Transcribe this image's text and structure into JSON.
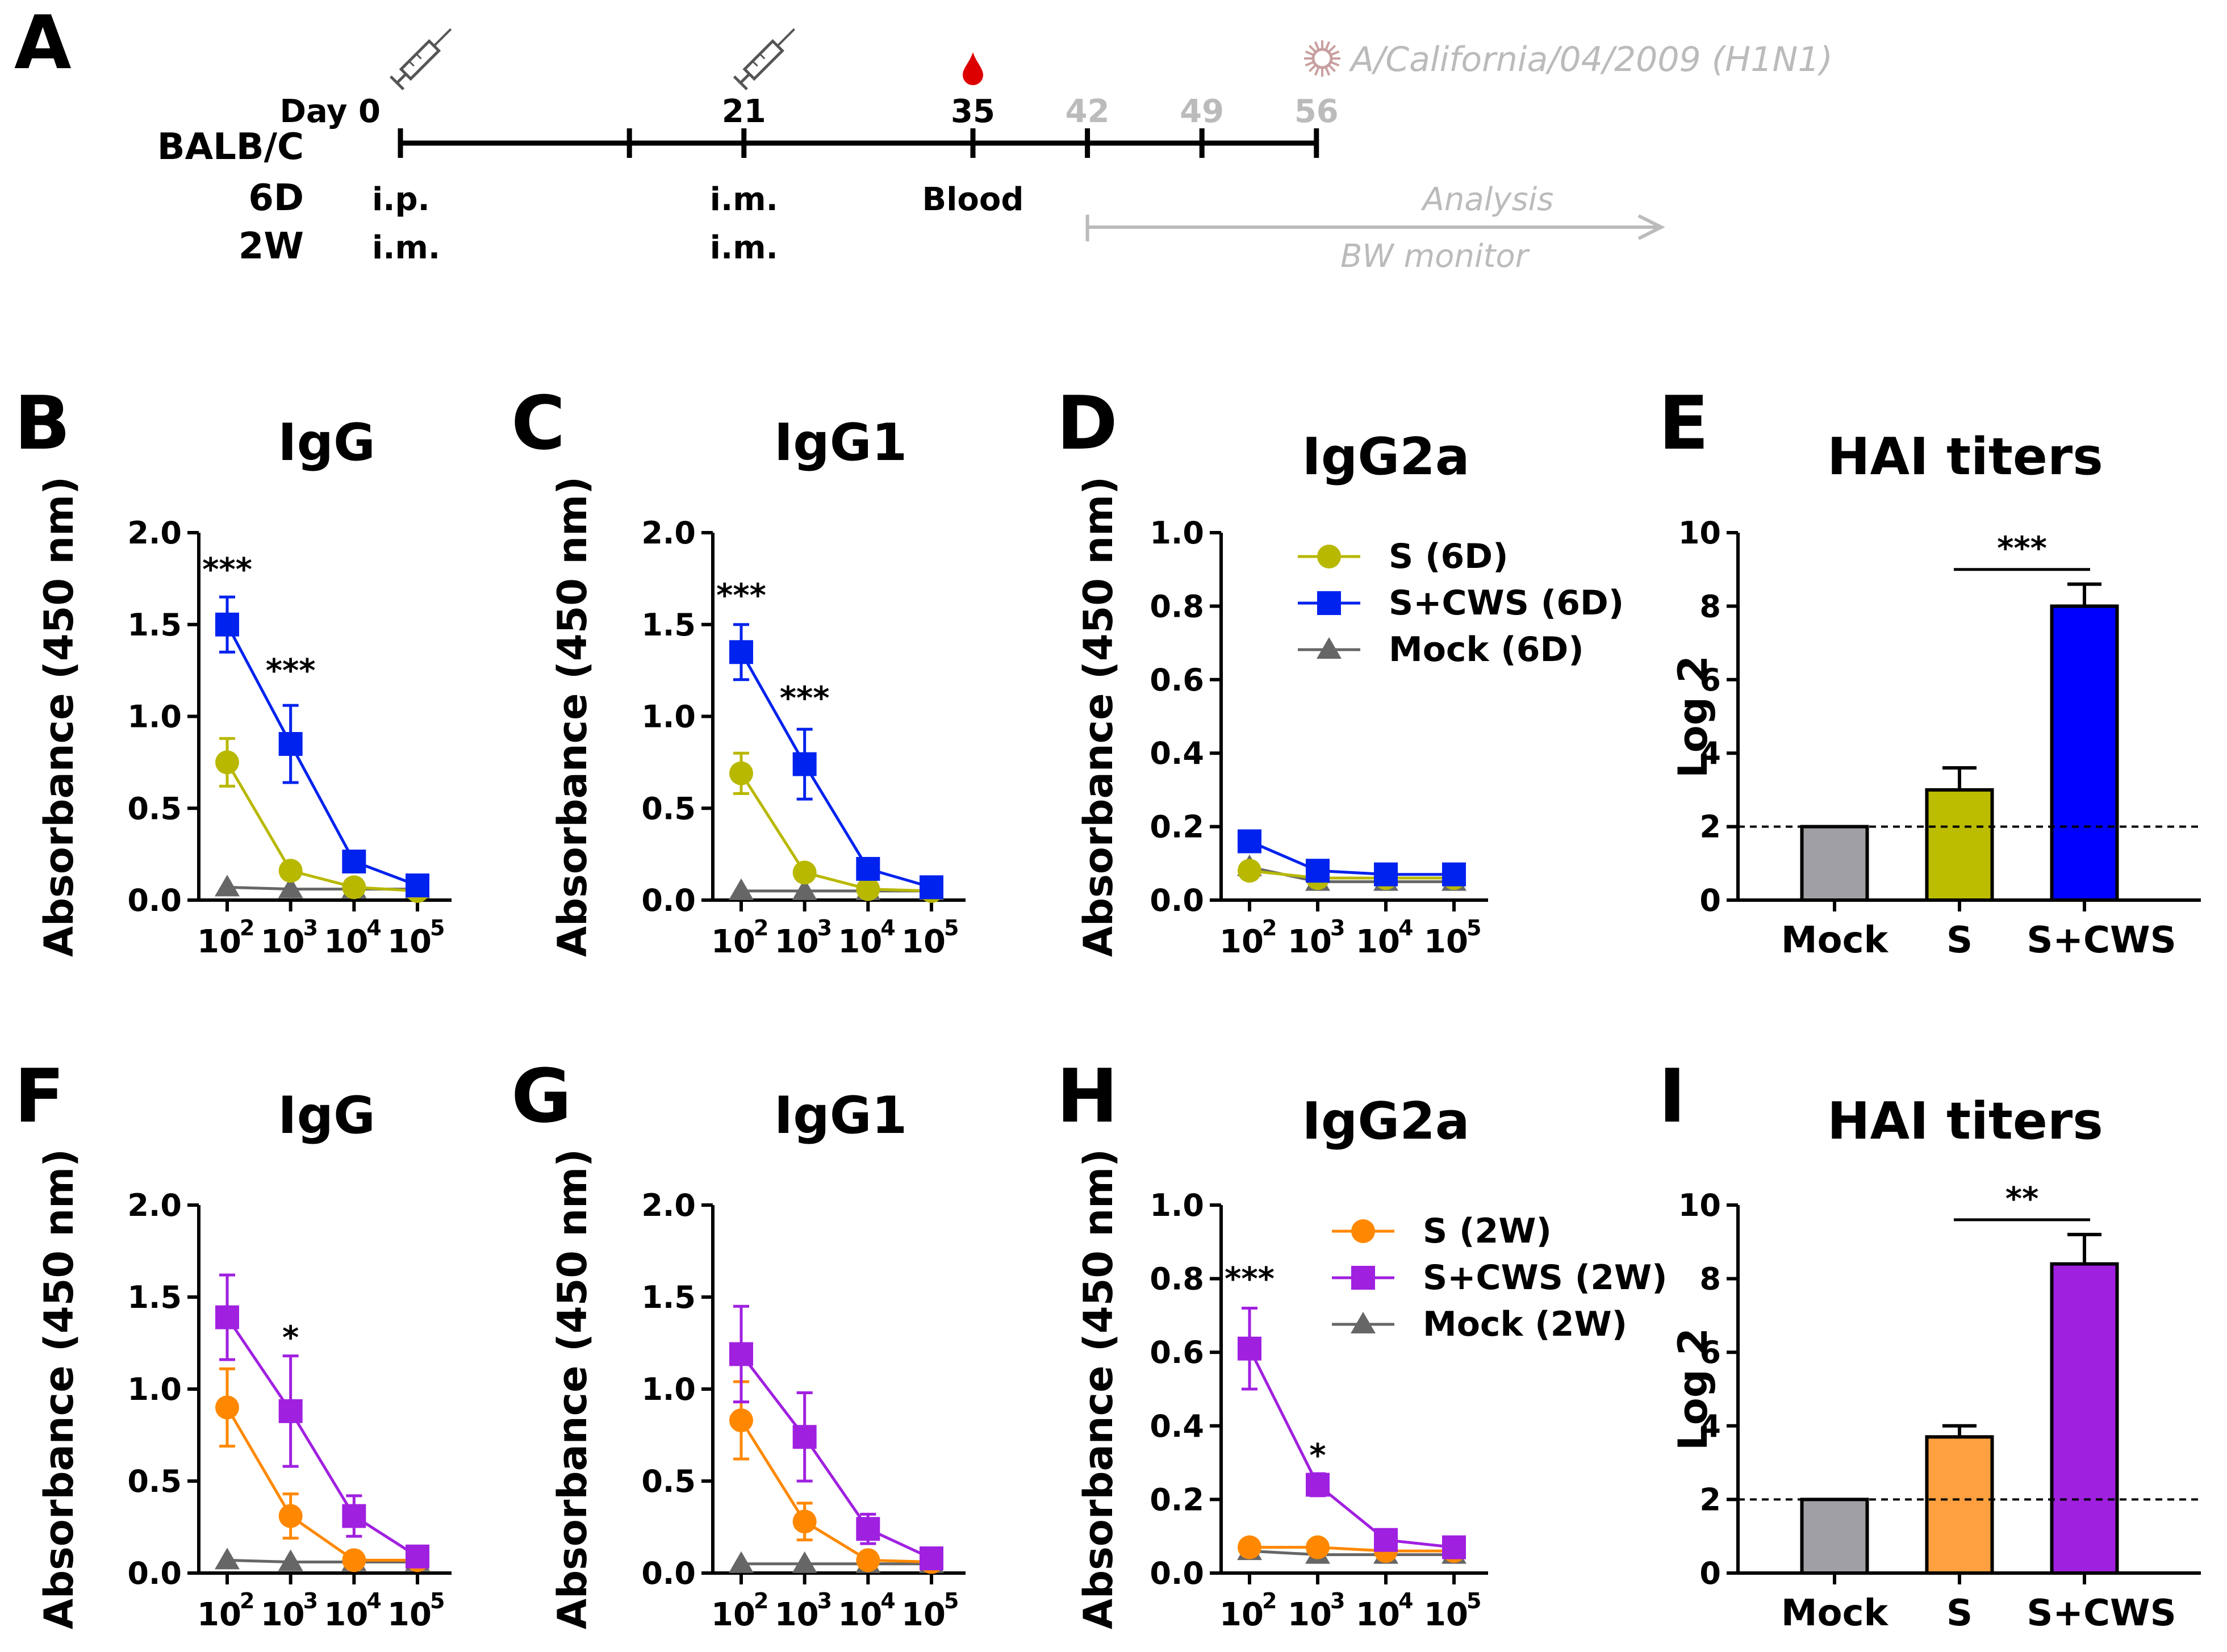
{
  "timeline": {
    "panel": "A",
    "virus_label": "A/California/04/2009 (H1N1)",
    "day_label": "Day 0",
    "day_ticks": [
      {
        "day": 0,
        "label": "",
        "grey": false
      },
      {
        "day": 21,
        "label": "21",
        "grey": false
      },
      {
        "day": 35,
        "label": "35",
        "grey": false
      },
      {
        "day": 42,
        "label": "42",
        "grey": true
      },
      {
        "day": 49,
        "label": "49",
        "grey": true
      },
      {
        "day": 56,
        "label": "56",
        "grey": true
      }
    ],
    "minor_tick_day": 14,
    "row_labels": [
      "BALB/C",
      "6D",
      "2W"
    ],
    "day0_routes": [
      "i.p.",
      "i.m."
    ],
    "day21_routes": [
      "i.m.",
      "i.m."
    ],
    "blood_label": "Blood",
    "analysis_label": "Analysis",
    "bw_label": "BW monitor",
    "colors": {
      "blood": "#dd0000",
      "grey": "#bbbbbb",
      "virus": "#c8a0a0"
    }
  },
  "chart_data": [
    {
      "panel": "B",
      "type": "line",
      "title": "IgG",
      "row": "6D",
      "ylabel": "Absorbance (450 nm)",
      "ylim": [
        0,
        2.0
      ],
      "yticks": [
        "0.0",
        "0.5",
        "1.0",
        "1.5",
        "2.0"
      ],
      "xtick_base": "10",
      "xtick_exp": [
        "2",
        "3",
        "4",
        "5"
      ],
      "series": [
        {
          "name": "S (6D)",
          "color": "#b8b800",
          "marker": "circle",
          "values": [
            0.75,
            0.16,
            0.07,
            0.05
          ],
          "errors": [
            0.13,
            0.03,
            0.02,
            0.01
          ]
        },
        {
          "name": "S+CWS (6D)",
          "color": "#0022ee",
          "marker": "square",
          "values": [
            1.5,
            0.85,
            0.21,
            0.08
          ],
          "errors": [
            0.15,
            0.21,
            0.05,
            0.02
          ]
        },
        {
          "name": "Mock (6D)",
          "color": "#666666",
          "marker": "triangle",
          "values": [
            0.07,
            0.06,
            0.06,
            0.06
          ],
          "errors": [
            0,
            0,
            0,
            0
          ]
        }
      ],
      "annotations": [
        {
          "label": "***",
          "index": 0,
          "y": 1.74
        },
        {
          "label": "***",
          "index": 1,
          "y": 1.19
        }
      ]
    },
    {
      "panel": "C",
      "type": "line",
      "title": "IgG1",
      "row": "6D",
      "ylabel": "Absorbance (450 nm)",
      "ylim": [
        0,
        2.0
      ],
      "yticks": [
        "0.0",
        "0.5",
        "1.0",
        "1.5",
        "2.0"
      ],
      "xtick_base": "10",
      "xtick_exp": [
        "2",
        "3",
        "4",
        "5"
      ],
      "series": [
        {
          "name": "S (6D)",
          "color": "#b8b800",
          "marker": "circle",
          "values": [
            0.69,
            0.15,
            0.06,
            0.05
          ],
          "errors": [
            0.11,
            0.02,
            0.01,
            0.01
          ]
        },
        {
          "name": "S+CWS (6D)",
          "color": "#0022ee",
          "marker": "square",
          "values": [
            1.35,
            0.74,
            0.17,
            0.07
          ],
          "errors": [
            0.15,
            0.19,
            0.03,
            0.01
          ]
        },
        {
          "name": "Mock (6D)",
          "color": "#666666",
          "marker": "triangle",
          "values": [
            0.05,
            0.05,
            0.05,
            0.05
          ],
          "errors": [
            0,
            0,
            0,
            0
          ]
        }
      ],
      "annotations": [
        {
          "label": "***",
          "index": 0,
          "y": 1.6
        },
        {
          "label": "***",
          "index": 1,
          "y": 1.04
        }
      ]
    },
    {
      "panel": "D",
      "type": "line",
      "title": "IgG2a",
      "row": "6D",
      "ylabel": "Absorbance (450 nm)",
      "ylim": [
        0,
        1.0
      ],
      "yticks": [
        "0.0",
        "0.2",
        "0.4",
        "0.6",
        "0.8",
        "1.0"
      ],
      "xtick_base": "10",
      "xtick_exp": [
        "2",
        "3",
        "4",
        "5"
      ],
      "legend": true,
      "series": [
        {
          "name": "S (6D)",
          "color": "#b8b800",
          "marker": "circle",
          "values": [
            0.08,
            0.06,
            0.06,
            0.06
          ],
          "errors": [
            0.01,
            0.01,
            0.01,
            0.01
          ]
        },
        {
          "name": "S+CWS (6D)",
          "color": "#0022ee",
          "marker": "square",
          "values": [
            0.16,
            0.08,
            0.07,
            0.07
          ],
          "errors": [
            0.02,
            0.01,
            0.01,
            0.01
          ]
        },
        {
          "name": "Mock (6D)",
          "color": "#666666",
          "marker": "triangle",
          "values": [
            0.09,
            0.05,
            0.05,
            0.05
          ],
          "errors": [
            0,
            0,
            0,
            0
          ]
        }
      ],
      "annotations": []
    },
    {
      "panel": "E",
      "type": "bar",
      "title": "HAI titers",
      "row": "6D",
      "ylabel": "Log 2",
      "ylim": [
        0,
        10
      ],
      "yticks": [
        "0",
        "2",
        "4",
        "6",
        "8",
        "10"
      ],
      "categories": [
        "Mock",
        "S",
        "S+CWS"
      ],
      "values": [
        2.0,
        3.0,
        8.0
      ],
      "errors": [
        0,
        0.6,
        0.6
      ],
      "colors": [
        "#a0a0a4",
        "#bcbc00",
        "#0000ff"
      ],
      "dashed_line": 2.0,
      "annotations": [
        {
          "label": "***",
          "from": 1,
          "to": 2,
          "y": 9.0
        }
      ]
    },
    {
      "panel": "F",
      "type": "line",
      "title": "IgG",
      "row": "2W",
      "ylabel": "Absorbance (450 nm)",
      "ylim": [
        0,
        2.0
      ],
      "yticks": [
        "0.0",
        "0.5",
        "1.0",
        "1.5",
        "2.0"
      ],
      "xtick_base": "10",
      "xtick_exp": [
        "2",
        "3",
        "4",
        "5"
      ],
      "series": [
        {
          "name": "S (2W)",
          "color": "#ff8800",
          "marker": "circle",
          "values": [
            0.9,
            0.31,
            0.07,
            0.07
          ],
          "errors": [
            0.21,
            0.12,
            0.02,
            0.01
          ]
        },
        {
          "name": "S+CWS (2W)",
          "color": "#a020e0",
          "marker": "square",
          "values": [
            1.39,
            0.88,
            0.31,
            0.09
          ],
          "errors": [
            0.23,
            0.3,
            0.11,
            0.02
          ]
        },
        {
          "name": "Mock (2W)",
          "color": "#666666",
          "marker": "triangle",
          "values": [
            0.07,
            0.06,
            0.06,
            0.06
          ],
          "errors": [
            0,
            0,
            0,
            0
          ]
        }
      ],
      "annotations": [
        {
          "label": "*",
          "index": 1,
          "y": 1.22
        }
      ]
    },
    {
      "panel": "G",
      "type": "line",
      "title": "IgG1",
      "row": "2W",
      "ylabel": "Absorbance (450 nm)",
      "ylim": [
        0,
        2.0
      ],
      "yticks": [
        "0.0",
        "0.5",
        "1.0",
        "1.5",
        "2.0"
      ],
      "xtick_base": "10",
      "xtick_exp": [
        "2",
        "3",
        "4",
        "5"
      ],
      "series": [
        {
          "name": "S (2W)",
          "color": "#ff8800",
          "marker": "circle",
          "values": [
            0.83,
            0.28,
            0.07,
            0.06
          ],
          "errors": [
            0.21,
            0.1,
            0.02,
            0.01
          ]
        },
        {
          "name": "S+CWS (2W)",
          "color": "#a020e0",
          "marker": "square",
          "values": [
            1.19,
            0.74,
            0.24,
            0.08
          ],
          "errors": [
            0.26,
            0.24,
            0.08,
            0.02
          ]
        },
        {
          "name": "Mock (2W)",
          "color": "#666666",
          "marker": "triangle",
          "values": [
            0.05,
            0.05,
            0.05,
            0.05
          ],
          "errors": [
            0,
            0,
            0,
            0
          ]
        }
      ],
      "annotations": []
    },
    {
      "panel": "H",
      "type": "line",
      "title": "IgG2a",
      "row": "2W",
      "ylabel": "Absorbance (450 nm)",
      "ylim": [
        0,
        1.0
      ],
      "yticks": [
        "0.0",
        "0.2",
        "0.4",
        "0.6",
        "0.8",
        "1.0"
      ],
      "xtick_base": "10",
      "xtick_exp": [
        "2",
        "3",
        "4",
        "5"
      ],
      "legend": true,
      "series": [
        {
          "name": "S (2W)",
          "color": "#ff8800",
          "marker": "circle",
          "values": [
            0.07,
            0.07,
            0.06,
            0.06
          ],
          "errors": [
            0.01,
            0.01,
            0.01,
            0.01
          ]
        },
        {
          "name": "S+CWS (2W)",
          "color": "#a020e0",
          "marker": "square",
          "values": [
            0.61,
            0.24,
            0.09,
            0.07
          ],
          "errors": [
            0.11,
            0.03,
            0.02,
            0.01
          ]
        },
        {
          "name": "Mock (2W)",
          "color": "#666666",
          "marker": "triangle",
          "values": [
            0.06,
            0.05,
            0.05,
            0.05
          ],
          "errors": [
            0,
            0,
            0,
            0
          ]
        }
      ],
      "annotations": [
        {
          "label": "***",
          "index": 0,
          "y": 0.77
        },
        {
          "label": "*",
          "index": 1,
          "y": 0.29
        }
      ]
    },
    {
      "panel": "I",
      "type": "bar",
      "title": "HAI titers",
      "row": "2W",
      "ylabel": "Log 2",
      "ylim": [
        0,
        10
      ],
      "yticks": [
        "0",
        "2",
        "4",
        "6",
        "8",
        "10"
      ],
      "categories": [
        "Mock",
        "S",
        "S+CWS"
      ],
      "values": [
        2.0,
        3.7,
        8.4
      ],
      "errors": [
        0,
        0.3,
        0.8
      ],
      "colors": [
        "#a0a0a4",
        "#ffa040",
        "#a020e0"
      ],
      "dashed_line": 2.0,
      "annotations": [
        {
          "label": "**",
          "from": 1,
          "to": 2,
          "y": 9.6
        }
      ]
    }
  ]
}
